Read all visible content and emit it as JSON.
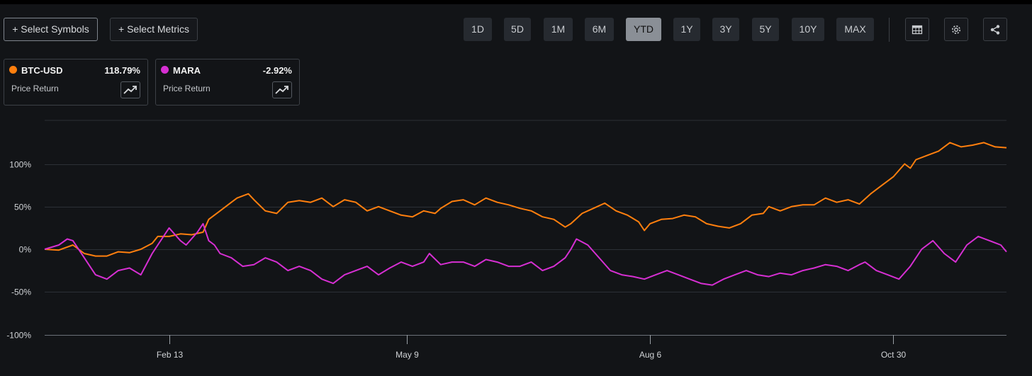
{
  "toolbar": {
    "select_symbols": "+ Select Symbols",
    "select_metrics": "+ Select Metrics",
    "ranges": [
      "1D",
      "5D",
      "1M",
      "6M",
      "YTD",
      "1Y",
      "3Y",
      "5Y",
      "10Y",
      "MAX"
    ],
    "active_range": "YTD",
    "icons": [
      "table-icon",
      "gear-icon",
      "share-icon"
    ]
  },
  "legend": [
    {
      "symbol": "BTC-USD",
      "value": "118.79%",
      "metric": "Price Return",
      "color": "#ff7f0e"
    },
    {
      "symbol": "MARA",
      "value": "-2.92%",
      "metric": "Price Return",
      "color": "#d62fd2"
    }
  ],
  "chart_data": {
    "type": "line",
    "y_ticks": [
      "100%",
      "50%",
      "0%",
      "-50%",
      "-100%"
    ],
    "y_tick_values": [
      100,
      50,
      0,
      -50,
      -100
    ],
    "ylim": [
      -100,
      150
    ],
    "x_ticks": [
      "Feb 13",
      "May 9",
      "Aug 6",
      "Oct 30"
    ],
    "x_tick_positions": [
      44,
      128,
      214,
      300
    ],
    "xlim": [
      0,
      340
    ],
    "grid": true,
    "series": [
      {
        "name": "BTC-USD",
        "color": "#ff7f0e",
        "x": [
          0,
          5,
          10,
          14,
          18,
          22,
          26,
          30,
          34,
          38,
          40,
          44,
          48,
          52,
          56,
          58,
          62,
          66,
          68,
          72,
          74,
          78,
          82,
          86,
          90,
          94,
          98,
          102,
          106,
          110,
          114,
          118,
          122,
          126,
          130,
          134,
          138,
          140,
          144,
          148,
          152,
          156,
          160,
          164,
          168,
          172,
          176,
          180,
          184,
          186,
          190,
          194,
          198,
          202,
          206,
          210,
          212,
          214,
          218,
          222,
          226,
          230,
          234,
          238,
          242,
          246,
          250,
          254,
          256,
          260,
          264,
          268,
          272,
          276,
          280,
          284,
          288,
          292,
          296,
          300,
          304,
          306,
          308,
          312,
          316,
          320,
          324,
          328,
          332,
          336,
          340
        ],
        "values": [
          0,
          -1,
          5,
          -5,
          -8,
          -8,
          -3,
          -4,
          0,
          7,
          15,
          15,
          18,
          17,
          20,
          35,
          45,
          55,
          60,
          65,
          58,
          45,
          42,
          55,
          57,
          55,
          60,
          50,
          58,
          55,
          45,
          50,
          45,
          40,
          38,
          45,
          42,
          48,
          56,
          58,
          52,
          60,
          55,
          52,
          48,
          45,
          38,
          35,
          26,
          30,
          42,
          48,
          54,
          45,
          40,
          32,
          22,
          30,
          35,
          36,
          40,
          38,
          30,
          27,
          25,
          30,
          40,
          42,
          50,
          45,
          50,
          52,
          52,
          60,
          55,
          58,
          53,
          65,
          75,
          85,
          100,
          95,
          105,
          110,
          115,
          125,
          120,
          122,
          125,
          120,
          119
        ]
      },
      {
        "name": "MARA",
        "color": "#d62fd2",
        "x": [
          0,
          5,
          8,
          10,
          14,
          18,
          22,
          26,
          30,
          34,
          38,
          40,
          44,
          48,
          50,
          54,
          56,
          58,
          60,
          62,
          66,
          70,
          74,
          78,
          82,
          86,
          90,
          94,
          98,
          102,
          106,
          110,
          114,
          118,
          122,
          126,
          130,
          134,
          136,
          140,
          144,
          148,
          152,
          156,
          160,
          164,
          168,
          172,
          176,
          180,
          184,
          186,
          188,
          192,
          196,
          200,
          204,
          208,
          212,
          216,
          220,
          224,
          228,
          232,
          236,
          240,
          244,
          248,
          252,
          256,
          260,
          264,
          268,
          272,
          276,
          280,
          284,
          288,
          290,
          292,
          294,
          298,
          302,
          306,
          310,
          314,
          318,
          322,
          326,
          330,
          334,
          338,
          340
        ],
        "values": [
          0,
          5,
          12,
          10,
          -10,
          -30,
          -35,
          -25,
          -22,
          -30,
          -5,
          5,
          25,
          10,
          5,
          20,
          30,
          10,
          5,
          -5,
          -10,
          -20,
          -18,
          -10,
          -15,
          -25,
          -20,
          -25,
          -35,
          -40,
          -30,
          -25,
          -20,
          -30,
          -22,
          -15,
          -20,
          -15,
          -5,
          -18,
          -15,
          -15,
          -20,
          -12,
          -15,
          -20,
          -20,
          -15,
          -25,
          -20,
          -10,
          0,
          12,
          5,
          -10,
          -25,
          -30,
          -32,
          -35,
          -30,
          -25,
          -30,
          -35,
          -40,
          -42,
          -35,
          -30,
          -25,
          -30,
          -32,
          -28,
          -30,
          -25,
          -22,
          -18,
          -20,
          -25,
          -18,
          -15,
          -20,
          -25,
          -30,
          -35,
          -20,
          0,
          10,
          -5,
          -15,
          5,
          15,
          10,
          5,
          -3
        ]
      }
    ]
  }
}
